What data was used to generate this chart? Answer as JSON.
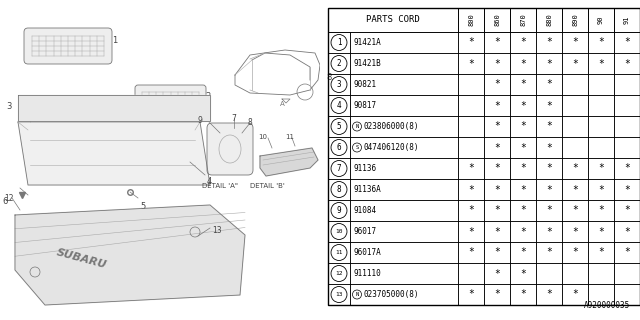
{
  "bg_color": "#ffffff",
  "table_header": "PARTS CORD",
  "year_labels": [
    "800",
    "860",
    "870",
    "880",
    "890",
    "90",
    "91"
  ],
  "rows": [
    {
      "num": "1",
      "part": "91421A",
      "marks": [
        1,
        1,
        1,
        1,
        1,
        1,
        1
      ]
    },
    {
      "num": "2",
      "part": "91421B",
      "marks": [
        1,
        1,
        1,
        1,
        1,
        1,
        1
      ]
    },
    {
      "num": "3",
      "part": "90821",
      "marks": [
        0,
        1,
        1,
        1,
        0,
        0,
        0
      ]
    },
    {
      "num": "4",
      "part": "90817",
      "marks": [
        0,
        1,
        1,
        1,
        0,
        0,
        0
      ]
    },
    {
      "num": "5",
      "part": "N023806000(8)",
      "marks": [
        0,
        1,
        1,
        1,
        0,
        0,
        0
      ],
      "prefix": "N"
    },
    {
      "num": "6",
      "part": "S047406120(8)",
      "marks": [
        0,
        1,
        1,
        1,
        0,
        0,
        0
      ],
      "prefix": "S"
    },
    {
      "num": "7",
      "part": "91136",
      "marks": [
        1,
        1,
        1,
        1,
        1,
        1,
        1
      ]
    },
    {
      "num": "8",
      "part": "91136A",
      "marks": [
        1,
        1,
        1,
        1,
        1,
        1,
        1
      ]
    },
    {
      "num": "9",
      "part": "91084",
      "marks": [
        1,
        1,
        1,
        1,
        1,
        1,
        1
      ]
    },
    {
      "num": "10",
      "part": "96017",
      "marks": [
        1,
        1,
        1,
        1,
        1,
        1,
        1
      ]
    },
    {
      "num": "11",
      "part": "96017A",
      "marks": [
        1,
        1,
        1,
        1,
        1,
        1,
        1
      ]
    },
    {
      "num": "12",
      "part": "911110",
      "marks": [
        0,
        1,
        1,
        0,
        0,
        0,
        0
      ]
    },
    {
      "num": "13",
      "part": "N023705000(8)",
      "marks": [
        1,
        1,
        1,
        1,
        1,
        0,
        0
      ],
      "prefix": "N"
    }
  ],
  "footer": "A920000035",
  "gray": "#777777",
  "lgray": "#aaaaaa",
  "dgray": "#444444"
}
